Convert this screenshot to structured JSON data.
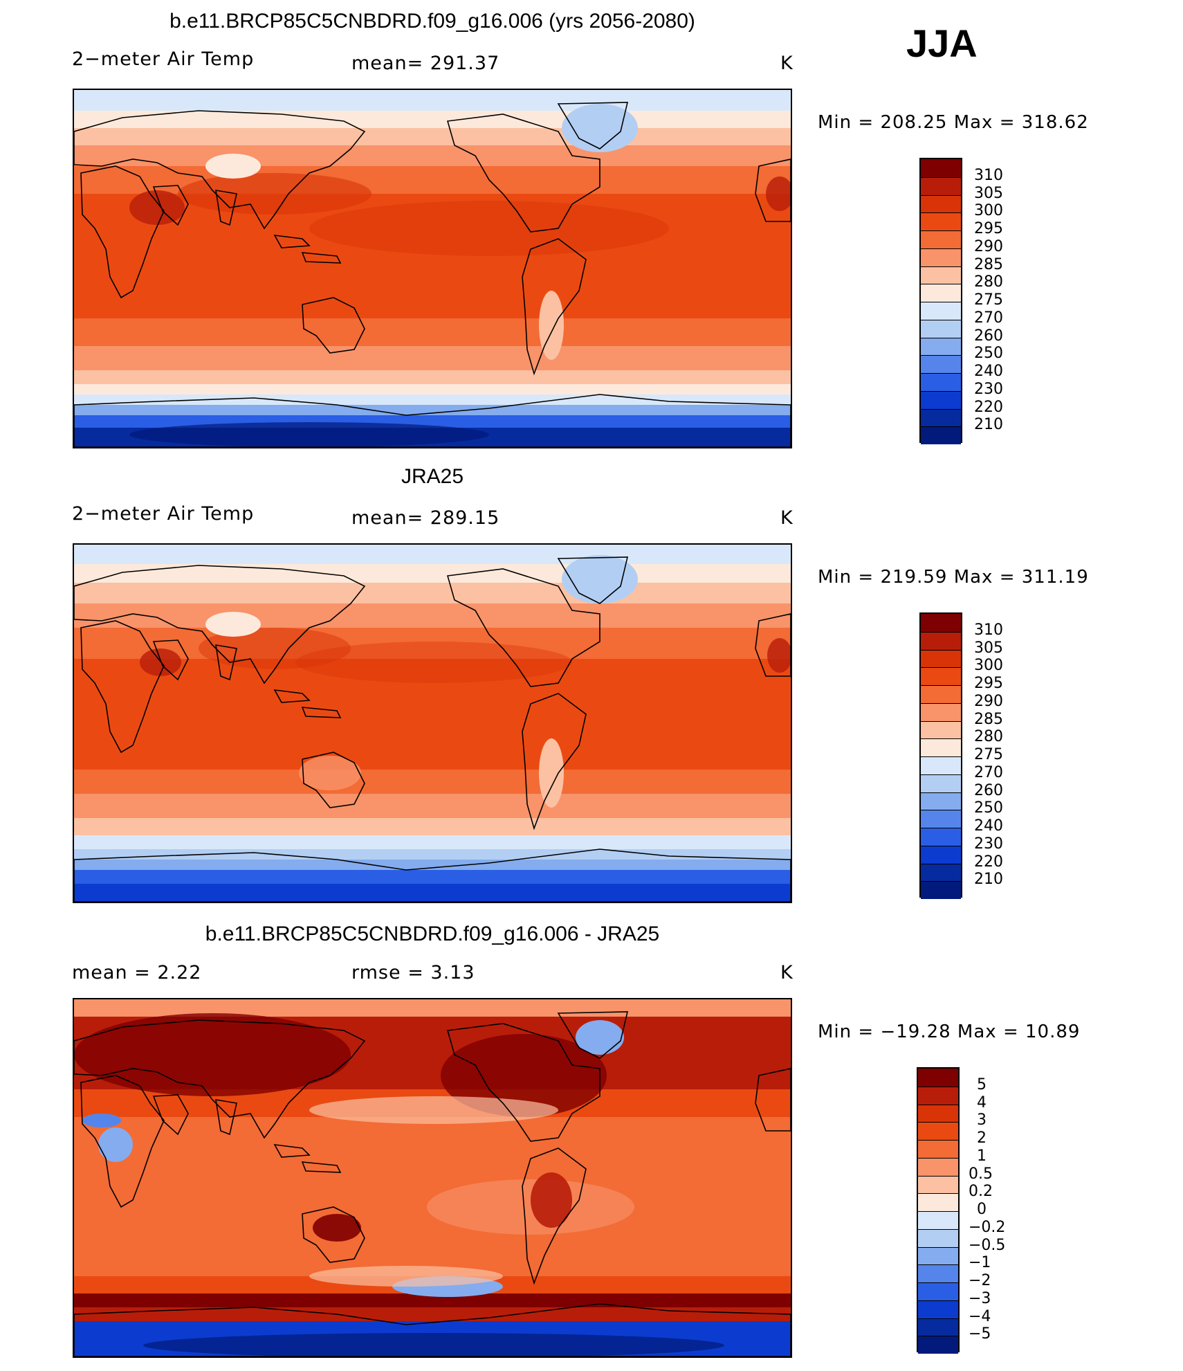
{
  "season": "JJA",
  "units": "K",
  "panels": [
    {
      "title": "b.e11.BRCP85C5CNBDRD.f09_g16.006 (yrs 2056-2080)",
      "variable": "2−meter Air Temp",
      "stat1": "mean=  291.37",
      "stat2": "",
      "units": "K",
      "minmax": "Min  =  208.25  Max  =  318.62",
      "colorbar_labels": [
        "310",
        "305",
        "300",
        "295",
        "290",
        "285",
        "280",
        "275",
        "270",
        "260",
        "250",
        "240",
        "230",
        "220",
        "210"
      ]
    },
    {
      "title": "JRA25",
      "variable": "2−meter Air Temp",
      "stat1": "mean=  289.15",
      "stat2": "",
      "units": "K",
      "minmax": "Min  =  219.59  Max  =  311.19",
      "colorbar_labels": [
        "310",
        "305",
        "300",
        "295",
        "290",
        "285",
        "280",
        "275",
        "270",
        "260",
        "250",
        "240",
        "230",
        "220",
        "210"
      ]
    },
    {
      "title": "b.e11.BRCP85C5CNBDRD.f09_g16.006 - JRA25",
      "variable": "mean  =     2.22",
      "stat1": "rmse  =     3.13",
      "stat2": "",
      "units": "K",
      "minmax": "Min  =  −19.28  Max  =    10.89",
      "colorbar_labels": [
        "5",
        "4",
        "3",
        "2",
        "1",
        "0.5",
        "0.2",
        "0",
        "−0.2",
        "−0.5",
        "−1",
        "−2",
        "−3",
        "−4",
        "−5"
      ]
    }
  ],
  "colors": {
    "scale": [
      "#7f0000",
      "#b81d0a",
      "#d93308",
      "#ea4a12",
      "#f36b35",
      "#f8936a",
      "#fbc1a2",
      "#fde9db",
      "#d8e8fa",
      "#b3cef3",
      "#84acee",
      "#5585ea",
      "#2a5ee5",
      "#0c3ccf",
      "#062b9e",
      "#011a7b"
    ]
  }
}
